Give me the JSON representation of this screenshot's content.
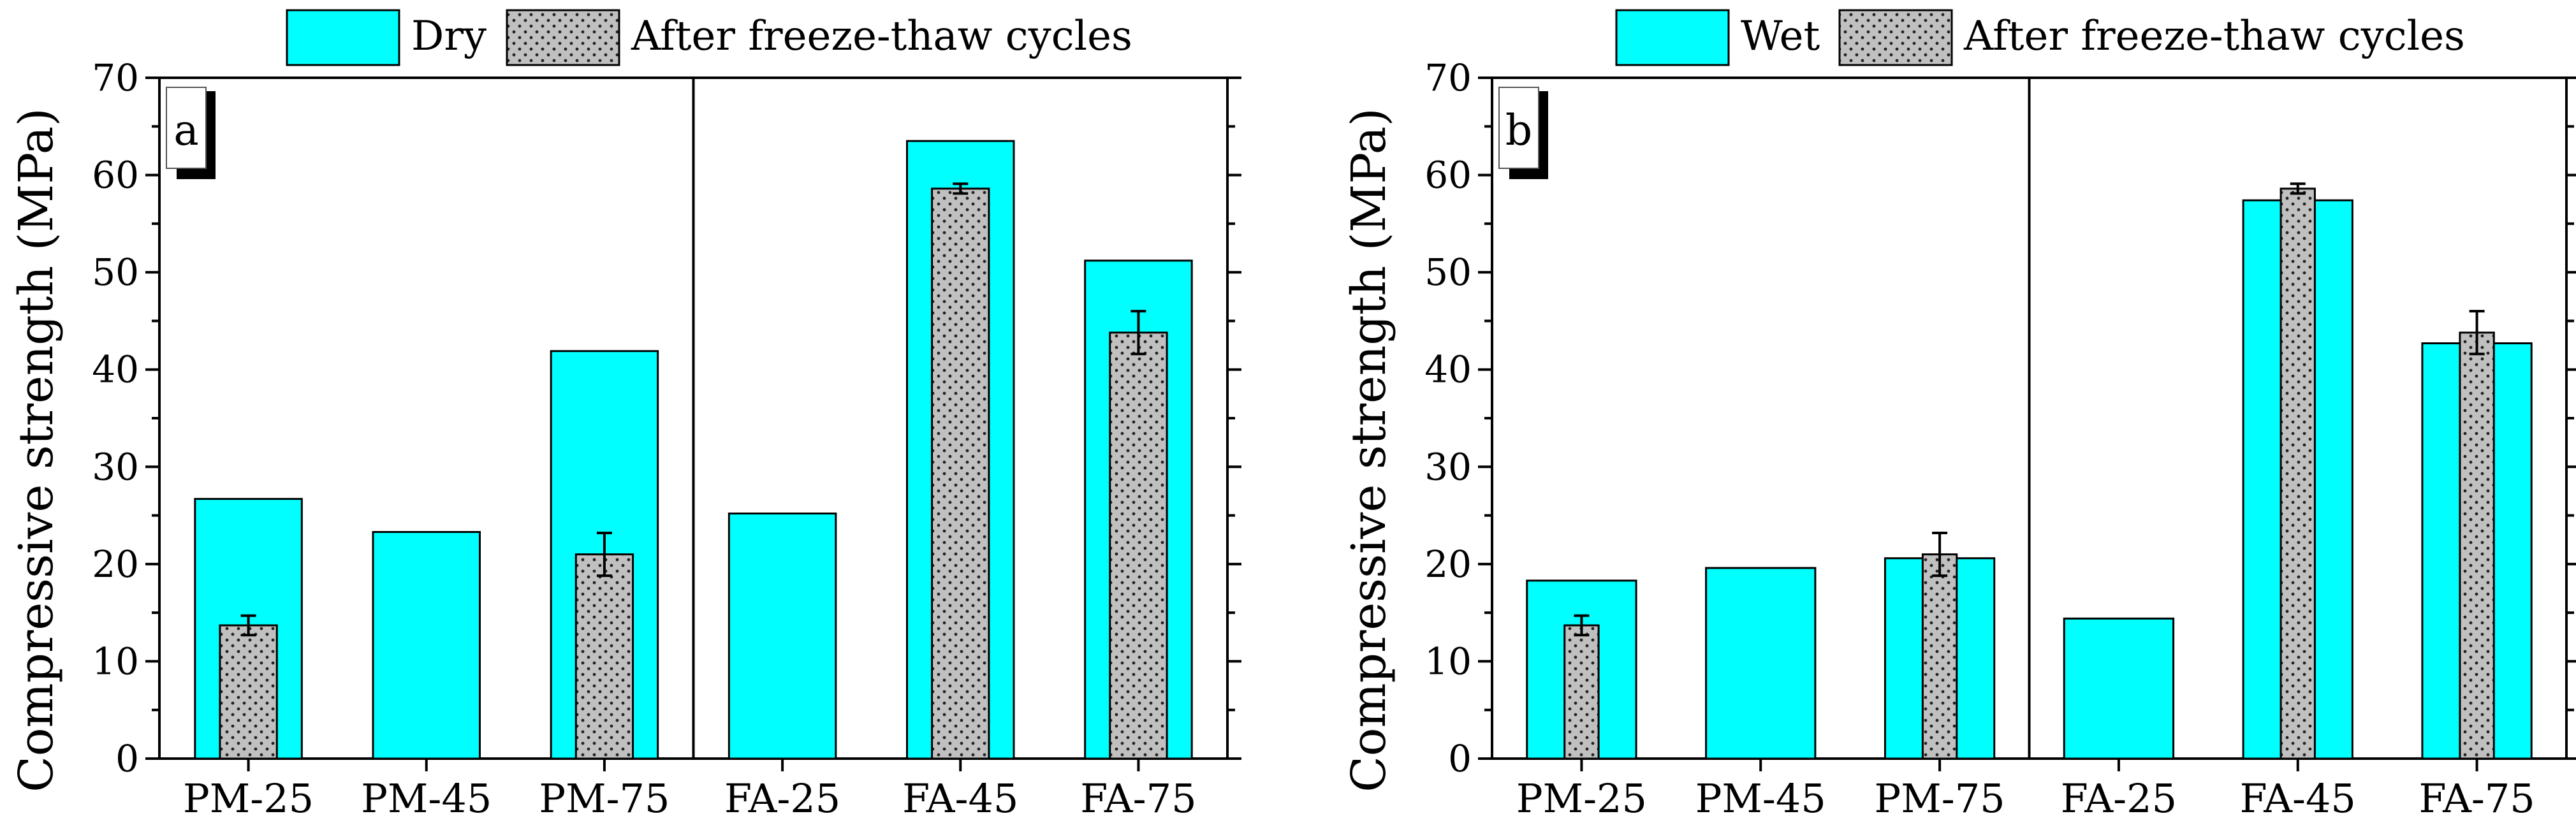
{
  "figure": {
    "y_axis_label": "Compressive strength (MPa)",
    "primary_color": "#00FFFF",
    "secondary_color": "#C0C0C0"
  },
  "chart_data": [
    {
      "type": "bar",
      "panel_label": "a",
      "categories": [
        "PM-25",
        "PM-45",
        "PM-75",
        "FA-25",
        "FA-45",
        "FA-75"
      ],
      "ylabel": "Compressive strength (MPa)",
      "xlabel": "",
      "ylim": [
        0,
        70
      ],
      "yticks": [
        0,
        10,
        20,
        30,
        40,
        50,
        60,
        70
      ],
      "group_divider_after_category": 2,
      "legend_position": "top",
      "series": [
        {
          "name": "Dry",
          "values": [
            26.7,
            23.3,
            41.9,
            25.2,
            63.5,
            51.2
          ],
          "errors": [
            null,
            null,
            null,
            null,
            null,
            null
          ]
        },
        {
          "name": "After freeze-thaw cycles",
          "values": [
            13.7,
            null,
            21.0,
            null,
            58.6,
            43.8
          ],
          "errors": [
            1.0,
            null,
            2.2,
            null,
            0.5,
            2.2
          ]
        }
      ]
    },
    {
      "type": "bar",
      "panel_label": "b",
      "categories": [
        "PM-25",
        "PM-45",
        "PM-75",
        "FA-25",
        "FA-45",
        "FA-75"
      ],
      "ylabel": "Compressive strength (MPa)",
      "xlabel": "",
      "ylim": [
        0,
        70
      ],
      "yticks": [
        0,
        10,
        20,
        30,
        40,
        50,
        60,
        70
      ],
      "group_divider_after_category": 2,
      "legend_position": "top",
      "series": [
        {
          "name": "Wet",
          "values": [
            18.3,
            19.6,
            20.6,
            14.4,
            57.4,
            42.7
          ],
          "errors": [
            null,
            null,
            null,
            null,
            null,
            null
          ]
        },
        {
          "name": "After freeze-thaw cycles",
          "values": [
            13.7,
            null,
            21.0,
            null,
            58.6,
            43.8
          ],
          "errors": [
            1.0,
            null,
            2.2,
            null,
            0.5,
            2.2
          ]
        }
      ]
    }
  ]
}
